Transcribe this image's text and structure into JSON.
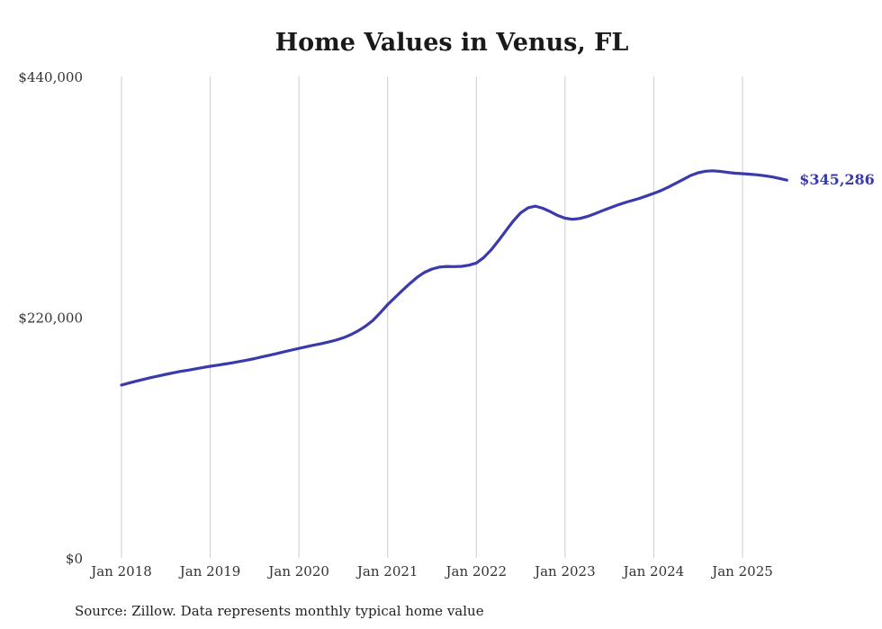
{
  "title": "Home Values in Venus, FL",
  "source_note": "Source: Zillow. Data represents monthly typical home value",
  "end_label": "$345,286",
  "colors": {
    "line": "#3a3aad",
    "grid": "#cccccc",
    "text": "#333333",
    "title": "#1a1a1a"
  },
  "chart_data": {
    "type": "line",
    "title": "Home Values in Venus, FL",
    "series_name": "Typical home value",
    "x_start": "Jan 2018",
    "x_interval": "monthly",
    "x_ticks": [
      "Jan 2018",
      "Jan 2019",
      "Jan 2020",
      "Jan 2021",
      "Jan 2022",
      "Jan 2023",
      "Jan 2024",
      "Jan 2025"
    ],
    "y_ticks": [
      {
        "value": 0,
        "label": "$0"
      },
      {
        "value": 220000,
        "label": "$220,000"
      },
      {
        "value": 440000,
        "label": "$440,000"
      }
    ],
    "ylim": [
      0,
      440000
    ],
    "grid": "vertical-only",
    "legend_position": "none",
    "last_point_label": "$345,286",
    "last_point_value": 345286,
    "values": [
      158000,
      159800,
      161500,
      163200,
      164800,
      166300,
      167800,
      169200,
      170500,
      171600,
      172800,
      174000,
      175200,
      176200,
      177200,
      178300,
      179500,
      180800,
      182200,
      183700,
      185200,
      186800,
      188400,
      190000,
      191500,
      193000,
      194400,
      195800,
      197300,
      199000,
      201200,
      204000,
      207500,
      211800,
      217000,
      224000,
      231500,
      238000,
      244500,
      250800,
      256500,
      261000,
      264000,
      265800,
      266400,
      266200,
      266500,
      267500,
      269500,
      274500,
      281500,
      290000,
      299000,
      308000,
      315500,
      320000,
      321500,
      319500,
      316500,
      313000,
      310500,
      309500,
      310200,
      312000,
      314500,
      317200,
      319800,
      322300,
      324500,
      326500,
      328500,
      330800,
      333200,
      335800,
      339000,
      342500,
      346000,
      349500,
      352000,
      353400,
      353800,
      353200,
      352300,
      351600,
      351200,
      350700,
      350100,
      349300,
      348200,
      346800,
      345286
    ]
  }
}
